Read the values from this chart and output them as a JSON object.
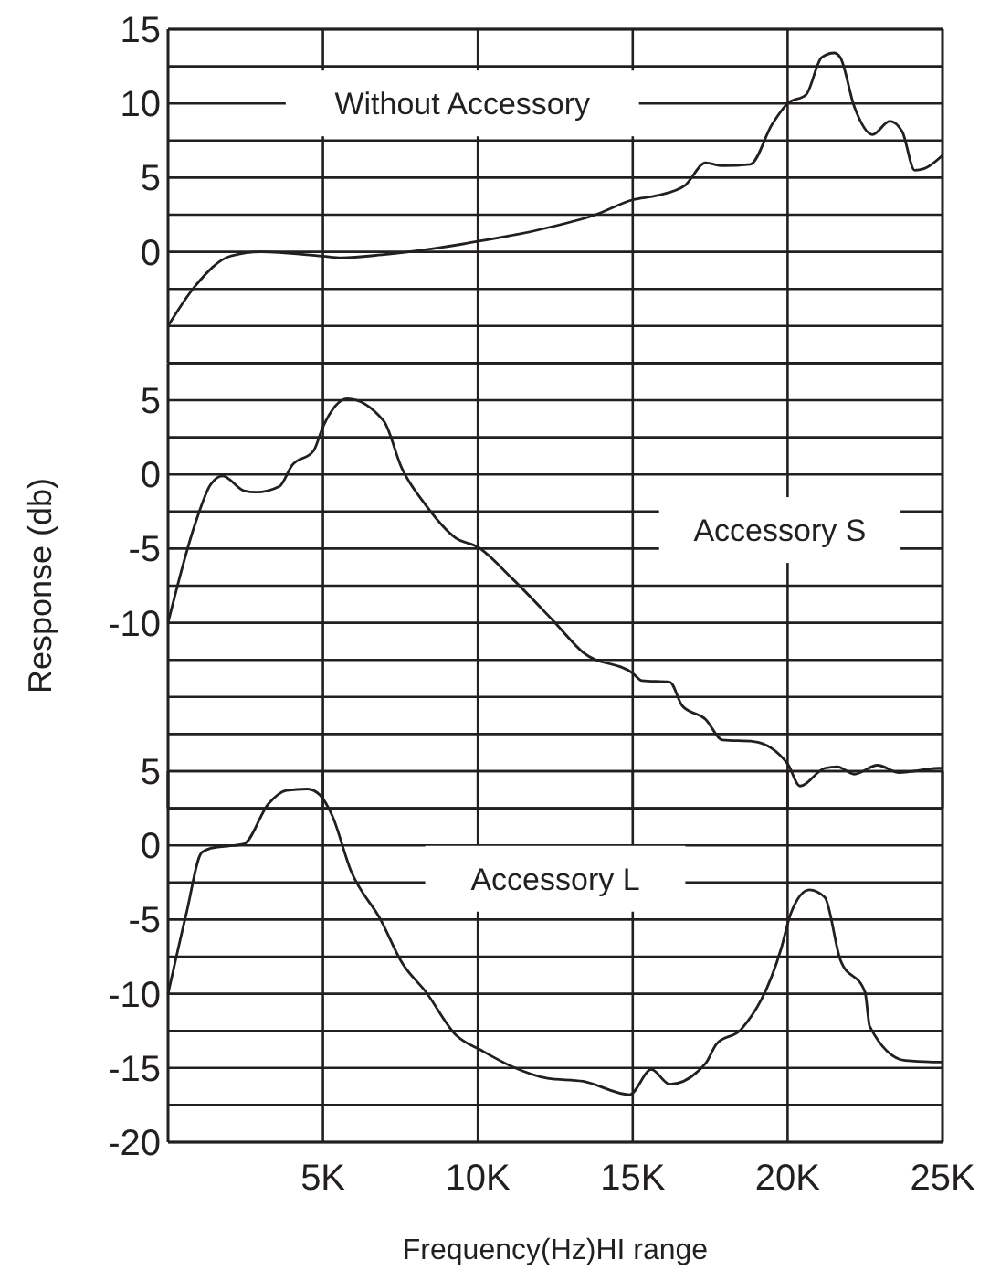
{
  "chart_data": [
    {
      "type": "line",
      "xlim": [
        0,
        25000
      ],
      "xticks": [
        {
          "value": 5000,
          "label": null
        },
        {
          "value": 10000,
          "label": null
        },
        {
          "value": 15000,
          "label": null
        },
        {
          "value": 20000,
          "label": null
        },
        {
          "value": 25000,
          "label": null
        }
      ],
      "ylim": [
        -7.5,
        15
      ],
      "yticks": [
        15,
        {
          "value": 12.5,
          "label": null
        },
        10,
        {
          "value": 7.5,
          "label": null
        },
        5,
        {
          "value": 2.5,
          "label": null
        },
        0,
        {
          "value": -2.5,
          "label": null
        },
        {
          "value": -5,
          "label": null
        },
        {
          "value": -7.5,
          "label": null
        }
      ],
      "grid": true,
      "tick_labels": "y",
      "line_style": "solid",
      "series": [
        {
          "name": "Without Accessory",
          "color": "#231f20",
          "x": [
            0,
            880,
            2000,
            3000,
            5000,
            5600,
            6900,
            8500,
            10000,
            12000,
            13800,
            15000,
            15800,
            16700,
            17350,
            17900,
            18800,
            19500,
            20000,
            20600,
            21100,
            21500,
            21700,
            22150,
            22740,
            23300,
            23700,
            24100,
            24400,
            25000
          ],
          "values": [
            -5,
            -2.3,
            -0.3,
            0,
            -0.3,
            -0.4,
            -0.2,
            0.2,
            0.7,
            1.5,
            2.5,
            3.5,
            3.8,
            4.5,
            6,
            5.8,
            5.9,
            8.6,
            10,
            10.6,
            13.1,
            13.4,
            13.1,
            9.8,
            7.9,
            8.8,
            8.1,
            5.5,
            5.6,
            6.5
          ]
        }
      ]
    },
    {
      "type": "line",
      "xlim": [
        0,
        25000
      ],
      "xticks": [
        {
          "value": 5000,
          "label": null
        },
        {
          "value": 10000,
          "label": null
        },
        {
          "value": 15000,
          "label": null
        },
        {
          "value": 20000,
          "label": null
        },
        {
          "value": 25000,
          "label": null
        }
      ],
      "ylim": [
        -22.5,
        7.5
      ],
      "yticks": [
        {
          "value": 7.5,
          "label": null
        },
        5,
        {
          "value": 2.5,
          "label": null
        },
        0,
        {
          "value": -2.5,
          "label": null
        },
        -5,
        {
          "value": -7.5,
          "label": null
        },
        -10,
        {
          "value": -12.5,
          "label": null
        },
        {
          "value": -15,
          "label": null
        },
        {
          "value": -17.5,
          "label": null
        },
        {
          "value": -20,
          "label": null
        },
        {
          "value": -22.5,
          "label": null
        }
      ],
      "grid": true,
      "tick_labels": "y",
      "line_style": "solid",
      "ylabel": "Response (db)",
      "series": [
        {
          "name": "Accessory S",
          "color": "#231f20",
          "x": [
            0,
            880,
            1370,
            1760,
            2450,
            2840,
            3600,
            4000,
            4700,
            5000,
            5780,
            6960,
            7550,
            8330,
            9300,
            10000,
            11100,
            12450,
            13400,
            15000,
            15300,
            16200,
            16600,
            17350,
            17900,
            18900,
            20000,
            20400,
            21200,
            21600,
            22150,
            22900,
            23600,
            24900,
            25000
          ],
          "values": [
            -10,
            -3.3,
            -0.7,
            -0.1,
            -1.1,
            -1.2,
            -0.8,
            0.6,
            1.6,
            3.2,
            5.1,
            3.6,
            0.4,
            -2.1,
            -4.3,
            -4.9,
            -7,
            -9.9,
            -12,
            -13.4,
            -13.9,
            -14,
            -15.6,
            -16.5,
            -17.9,
            -18,
            -19.5,
            -21,
            -19.8,
            -19.7,
            -20.2,
            -19.6,
            -20.1,
            -19.8,
            -19.8
          ]
        }
      ]
    },
    {
      "type": "line",
      "xlim": [
        0,
        25000
      ],
      "xticks": [
        {
          "value": 5000,
          "label": "5K"
        },
        {
          "value": 10000,
          "label": "10K"
        },
        {
          "value": 15000,
          "label": "15K"
        },
        {
          "value": 20000,
          "label": "20K"
        },
        {
          "value": 25000,
          "label": "25K"
        }
      ],
      "ylim": [
        -20,
        5
      ],
      "yticks": [
        5,
        {
          "value": 2.5,
          "label": null
        },
        0,
        {
          "value": -2.5,
          "label": null
        },
        -5,
        {
          "value": -7.5,
          "label": null
        },
        -10,
        {
          "value": -12.5,
          "label": null
        },
        -15,
        {
          "value": -17.5,
          "label": null
        },
        -20
      ],
      "grid": true,
      "line_style": "solid",
      "xlabel": "Frequency(Hz)HI range",
      "series": [
        {
          "name": "Accessory  L",
          "color": "#231f20",
          "x": [
            0,
            590,
            1080,
            1370,
            2450,
            3240,
            3820,
            4500,
            4900,
            5300,
            5900,
            6860,
            7550,
            8330,
            9300,
            10100,
            11100,
            12250,
            13400,
            14900,
            15600,
            16200,
            17350,
            17700,
            18500,
            19800,
            20100,
            20700,
            21200,
            21700,
            22500,
            22650,
            23800,
            24900,
            25000
          ],
          "values": [
            -10,
            -4.6,
            -0.5,
            -0.2,
            0.1,
            2.8,
            3.7,
            3.8,
            3.4,
            2,
            -1.7,
            -5,
            -7.9,
            -9.9,
            -12.8,
            -13.8,
            -14.9,
            -15.7,
            -15.9,
            -16.8,
            -15.1,
            -16.1,
            -14.7,
            -13.4,
            -12.4,
            -6.9,
            -4.6,
            -3,
            -3.5,
            -7.7,
            -9.9,
            -12.2,
            -14.5,
            -14.6,
            -14.6
          ]
        }
      ]
    }
  ]
}
